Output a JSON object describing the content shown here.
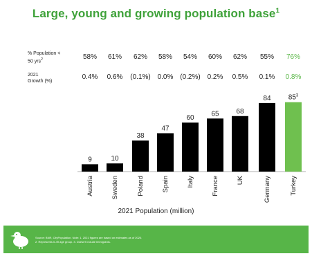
{
  "title": "Large, young and growing population base",
  "title_sup": "1",
  "stats": {
    "row1_label_main": "% Population <",
    "row1_label_sub": "50 yrs",
    "row1_label_sup": "2",
    "row1_values": [
      "58%",
      "61%",
      "62%",
      "58%",
      "54%",
      "60%",
      "62%",
      "55%",
      "76%"
    ],
    "row2_label_main": "2021",
    "row2_label_sub": "Growth (%)",
    "row2_values": [
      "0.4%",
      "0.6%",
      "(0.1%)",
      "0.0%",
      "(0.2%)",
      "0.2%",
      "0.5%",
      "0.1%",
      "0.8%"
    ]
  },
  "chart_data": {
    "type": "bar",
    "categories": [
      "Austria",
      "Sweden",
      "Poland",
      "Spain",
      "Italy",
      "France",
      "UK",
      "Germany",
      "Turkey"
    ],
    "values": [
      9,
      10,
      38,
      47,
      60,
      65,
      68,
      84,
      85
    ],
    "data_labels": [
      "9",
      "10",
      "38",
      "47",
      "60",
      "65",
      "68",
      "84",
      "85"
    ],
    "turkey_label_sup": "3",
    "xlabel": "2021 Population (million)",
    "ylabel": "",
    "ylim": [
      0,
      100
    ],
    "grid": false,
    "legend": "none",
    "colors": {
      "default": "#000000",
      "highlight": "#6fc04f"
    },
    "highlight_category": "Turkey"
  },
  "footer": {
    "line1": "Source: BNR, CityPopulation. Note: 1. 2021 figures are based on estimates as of 2020.",
    "line2": "2. Represents 0-49 age group. 3. Doesn't include immigrants.",
    "background": "#57b548",
    "icon": "bird-mascot-icon"
  },
  "colors": {
    "title": "#3fa23a",
    "highlight_text": "#5cb84a"
  }
}
